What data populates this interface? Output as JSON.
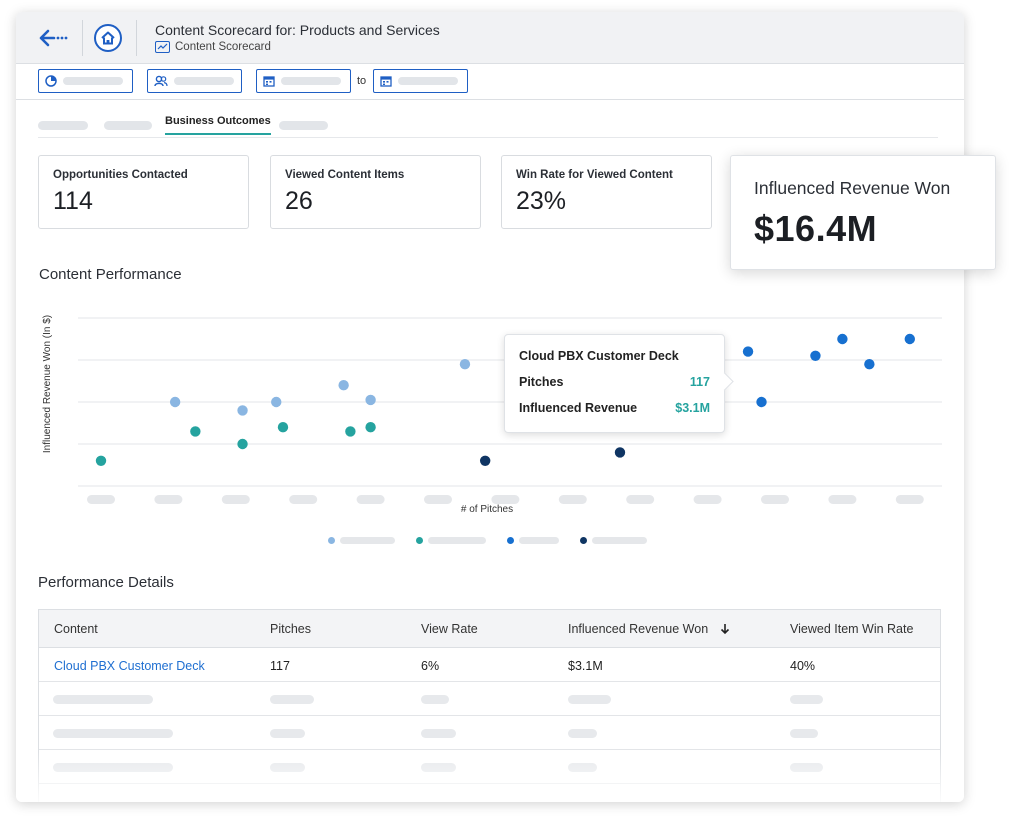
{
  "header": {
    "title": "Content Scorecard for: Products and Services",
    "subtitle": "Content Scorecard"
  },
  "filters": {
    "to_label": "to"
  },
  "tabs": {
    "active_label": "Business Outcomes"
  },
  "kpis": [
    {
      "label": "Opportunities Contacted",
      "value": "114"
    },
    {
      "label": "Viewed Content Items",
      "value": "26"
    },
    {
      "label": "Win Rate for Viewed Content",
      "value": "23%"
    }
  ],
  "highlight_kpi": {
    "label": "Influenced Revenue Won",
    "value": "$16.4M"
  },
  "content_performance": {
    "title": "Content Performance"
  },
  "colors": {
    "light_blue": "#8ab6e2",
    "teal": "#25a39f",
    "blue": "#1770d0",
    "navy": "#0f3563",
    "accent": "#1f5fc4"
  },
  "chart_data": {
    "type": "scatter",
    "xlabel": "# of Pitches",
    "ylabel": "Influenced Revenue Won (In $)",
    "x_tick_count": 13,
    "grid": true,
    "legend_placement": "bottom",
    "series": [
      {
        "color": "#8ab6e2",
        "points": [
          [
            1.1,
            3.0
          ],
          [
            2.1,
            2.8
          ],
          [
            2.6,
            3.0
          ],
          [
            3.6,
            3.4
          ],
          [
            4.0,
            3.05
          ],
          [
            5.4,
            3.9
          ]
        ]
      },
      {
        "color": "#25a39f",
        "points": [
          [
            0.0,
            1.6
          ],
          [
            1.4,
            2.3
          ],
          [
            2.1,
            2.0
          ],
          [
            2.7,
            2.4
          ],
          [
            3.7,
            2.3
          ],
          [
            4.0,
            2.4
          ]
        ]
      },
      {
        "color": "#1770d0",
        "points": [
          [
            9.6,
            4.2
          ],
          [
            9.8,
            3.0
          ],
          [
            10.6,
            4.1
          ],
          [
            11.0,
            4.5
          ],
          [
            11.4,
            3.9
          ],
          [
            12.0,
            4.5
          ]
        ]
      },
      {
        "color": "#0f3563",
        "points": [
          [
            5.7,
            1.6
          ],
          [
            7.7,
            1.8
          ]
        ]
      }
    ]
  },
  "tooltip": {
    "title": "Cloud PBX Customer Deck",
    "rows": [
      {
        "label": "Pitches",
        "value": "117"
      },
      {
        "label": "Influenced Revenue",
        "value": "$3.1M"
      }
    ]
  },
  "performance_details": {
    "title": "Performance Details",
    "columns": [
      "Content",
      "Pitches",
      "View Rate",
      "Influenced Revenue Won",
      "Viewed Item Win Rate"
    ],
    "sort_icon": "arrow-down-icon",
    "rows": [
      [
        "Cloud PBX Customer Deck",
        "117",
        "6%",
        "$3.1M",
        "40%"
      ]
    ]
  }
}
